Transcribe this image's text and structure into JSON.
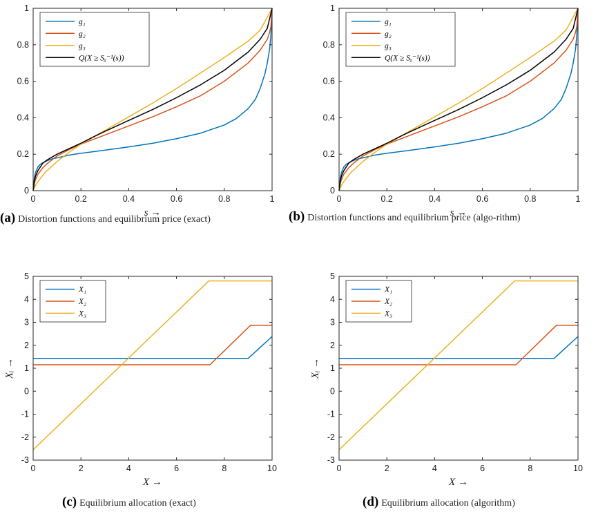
{
  "colors": {
    "g1": "#0072BD",
    "g2": "#D95319",
    "g3": "#EDB120",
    "Q": "#000000",
    "axes": "#262626"
  },
  "captions": {
    "a": {
      "tag": "(a)",
      "text": "Distortion functions and equilibrium price (exact)"
    },
    "b": {
      "tag": "(b)",
      "text": "Distortion functions and equilibrium price (algo-rithm)"
    },
    "c": {
      "tag": "(c)",
      "text": "Equilibrium allocation (exact)"
    },
    "d": {
      "tag": "(d)",
      "text": "Equilibrium allocation (algorithm)"
    }
  },
  "chart_data": [
    {
      "id": "a",
      "type": "line",
      "xlabel": "s →",
      "ylabel": "",
      "xlim": [
        0,
        1
      ],
      "ylim": [
        0,
        1
      ],
      "xticks": [
        "0",
        "0.2",
        "0.4",
        "0.6",
        "0.8",
        "1"
      ],
      "yticks": [
        "0",
        "0.2",
        "0.4",
        "0.6",
        "0.8",
        "1"
      ],
      "grid": false,
      "legend": "top-left",
      "series": [
        {
          "name": "g1",
          "legend_label": "g₁",
          "color_key": "g1",
          "x": [
            0,
            0.005,
            0.01,
            0.02,
            0.03,
            0.05,
            0.08,
            0.1,
            0.15,
            0.2,
            0.3,
            0.4,
            0.5,
            0.6,
            0.7,
            0.8,
            0.85,
            0.9,
            0.93,
            0.95,
            0.97,
            0.98,
            0.99,
            0.995,
            1
          ],
          "y": [
            0,
            0.07,
            0.1,
            0.13,
            0.145,
            0.16,
            0.175,
            0.18,
            0.195,
            0.205,
            0.222,
            0.24,
            0.26,
            0.285,
            0.315,
            0.36,
            0.395,
            0.45,
            0.5,
            0.56,
            0.64,
            0.7,
            0.78,
            0.85,
            1
          ]
        },
        {
          "name": "g2",
          "legend_label": "g₂",
          "color_key": "g2",
          "x": [
            0,
            0.005,
            0.01,
            0.02,
            0.04,
            0.06,
            0.1,
            0.15,
            0.2,
            0.25,
            0.3,
            0.4,
            0.5,
            0.6,
            0.7,
            0.8,
            0.9,
            0.95,
            0.98,
            0.99,
            0.995,
            1
          ],
          "y": [
            0,
            0.04,
            0.06,
            0.09,
            0.125,
            0.15,
            0.19,
            0.225,
            0.255,
            0.28,
            0.305,
            0.355,
            0.405,
            0.46,
            0.52,
            0.6,
            0.7,
            0.77,
            0.83,
            0.87,
            0.9,
            1
          ]
        },
        {
          "name": "g3",
          "legend_label": "g₃",
          "color_key": "g3",
          "x": [
            0,
            0.01,
            0.02,
            0.05,
            0.1,
            0.15,
            0.2,
            0.26,
            0.3,
            0.4,
            0.5,
            0.6,
            0.7,
            0.8,
            0.9,
            0.95,
            1
          ],
          "y": [
            0,
            0.03,
            0.05,
            0.1,
            0.16,
            0.21,
            0.255,
            0.3,
            0.33,
            0.405,
            0.48,
            0.56,
            0.645,
            0.73,
            0.82,
            0.88,
            1
          ]
        },
        {
          "name": "Q(X ≥ S_X^{-1}(s))",
          "legend_label": "Q(X ≥ Sᵪ⁻¹(s))",
          "color_key": "Q",
          "x": [
            0,
            0.005,
            0.01,
            0.02,
            0.04,
            0.06,
            0.1,
            0.15,
            0.2,
            0.26,
            0.3,
            0.4,
            0.5,
            0.6,
            0.7,
            0.8,
            0.9,
            0.95,
            0.98,
            1
          ],
          "y": [
            0,
            0.05,
            0.08,
            0.11,
            0.15,
            0.17,
            0.2,
            0.23,
            0.26,
            0.3,
            0.325,
            0.385,
            0.445,
            0.51,
            0.58,
            0.66,
            0.76,
            0.83,
            0.89,
            1
          ]
        }
      ]
    },
    {
      "id": "b",
      "type": "line",
      "xlabel": "s →",
      "ylabel": "",
      "xlim": [
        0,
        1
      ],
      "ylim": [
        0,
        1
      ],
      "xticks": [
        "0",
        "0.2",
        "0.4",
        "0.6",
        "0.8",
        "1"
      ],
      "yticks": [
        "0",
        "0.2",
        "0.4",
        "0.6",
        "0.8",
        "1"
      ],
      "grid": false,
      "legend": "top-left",
      "series": [
        {
          "name": "g1",
          "legend_label": "g₁",
          "color_key": "g1",
          "x": [
            0,
            0.005,
            0.01,
            0.02,
            0.03,
            0.05,
            0.08,
            0.1,
            0.15,
            0.2,
            0.3,
            0.4,
            0.5,
            0.6,
            0.7,
            0.8,
            0.85,
            0.9,
            0.93,
            0.95,
            0.97,
            0.98,
            0.99,
            0.995,
            1
          ],
          "y": [
            0,
            0.07,
            0.1,
            0.13,
            0.145,
            0.16,
            0.175,
            0.18,
            0.195,
            0.205,
            0.222,
            0.24,
            0.26,
            0.285,
            0.315,
            0.36,
            0.395,
            0.45,
            0.5,
            0.56,
            0.64,
            0.7,
            0.78,
            0.85,
            1
          ]
        },
        {
          "name": "g2",
          "legend_label": "g₂",
          "color_key": "g2",
          "x": [
            0,
            0.005,
            0.01,
            0.02,
            0.04,
            0.06,
            0.1,
            0.15,
            0.2,
            0.25,
            0.3,
            0.4,
            0.5,
            0.6,
            0.7,
            0.8,
            0.9,
            0.95,
            0.98,
            0.99,
            0.995,
            1
          ],
          "y": [
            0,
            0.04,
            0.06,
            0.09,
            0.125,
            0.15,
            0.19,
            0.225,
            0.255,
            0.28,
            0.305,
            0.355,
            0.405,
            0.46,
            0.52,
            0.6,
            0.7,
            0.77,
            0.83,
            0.87,
            0.9,
            1
          ]
        },
        {
          "name": "g3",
          "legend_label": "g₃",
          "color_key": "g3",
          "x": [
            0,
            0.01,
            0.02,
            0.05,
            0.1,
            0.15,
            0.2,
            0.26,
            0.3,
            0.4,
            0.5,
            0.6,
            0.7,
            0.8,
            0.9,
            0.95,
            1
          ],
          "y": [
            0,
            0.03,
            0.05,
            0.1,
            0.16,
            0.21,
            0.255,
            0.3,
            0.33,
            0.405,
            0.48,
            0.56,
            0.645,
            0.73,
            0.82,
            0.88,
            1
          ]
        },
        {
          "name": "Q(X ≥ S_X^{-1}(s))",
          "legend_label": "Q(X ≥ Sᵪ⁻¹(s))",
          "color_key": "Q",
          "x": [
            0,
            0.005,
            0.01,
            0.02,
            0.04,
            0.06,
            0.1,
            0.15,
            0.2,
            0.26,
            0.3,
            0.4,
            0.5,
            0.6,
            0.7,
            0.8,
            0.9,
            0.95,
            0.98,
            1
          ],
          "y": [
            0,
            0.05,
            0.08,
            0.11,
            0.15,
            0.17,
            0.2,
            0.23,
            0.26,
            0.3,
            0.325,
            0.385,
            0.445,
            0.51,
            0.58,
            0.66,
            0.76,
            0.83,
            0.89,
            1
          ]
        }
      ]
    },
    {
      "id": "c",
      "type": "line",
      "xlabel": "X →",
      "ylabel": "Xᵢ →",
      "xlim": [
        0,
        10
      ],
      "ylim": [
        -3,
        5
      ],
      "xticks": [
        "0",
        "2",
        "4",
        "6",
        "8",
        "10"
      ],
      "yticks": [
        "-3",
        "-2",
        "-1",
        "0",
        "1",
        "2",
        "3",
        "4",
        "5"
      ],
      "grid": false,
      "legend": "top-left",
      "series": [
        {
          "name": "X1",
          "legend_label": "X₁",
          "color_key": "g1",
          "x": [
            0,
            9.0,
            10
          ],
          "y": [
            1.43,
            1.43,
            2.38
          ]
        },
        {
          "name": "X2",
          "legend_label": "X₂",
          "color_key": "g2",
          "x": [
            0,
            7.4,
            9.1,
            10
          ],
          "y": [
            1.15,
            1.15,
            2.87,
            2.87
          ]
        },
        {
          "name": "X3",
          "legend_label": "X₃",
          "color_key": "g3",
          "x": [
            0,
            7.35,
            10
          ],
          "y": [
            -2.55,
            4.8,
            4.8
          ]
        }
      ]
    },
    {
      "id": "d",
      "type": "line",
      "xlabel": "X →",
      "ylabel": "Xᵢ →",
      "xlim": [
        0,
        10
      ],
      "ylim": [
        -3,
        5
      ],
      "xticks": [
        "0",
        "2",
        "4",
        "6",
        "8",
        "10"
      ],
      "yticks": [
        "-3",
        "-2",
        "-1",
        "0",
        "1",
        "2",
        "3",
        "4",
        "5"
      ],
      "grid": false,
      "legend": "top-left",
      "series": [
        {
          "name": "X1",
          "legend_label": "X₁",
          "color_key": "g1",
          "x": [
            0,
            9.0,
            10
          ],
          "y": [
            1.43,
            1.43,
            2.38
          ]
        },
        {
          "name": "X2",
          "legend_label": "X₂",
          "color_key": "g2",
          "x": [
            0,
            7.4,
            9.1,
            10
          ],
          "y": [
            1.15,
            1.15,
            2.87,
            2.87
          ]
        },
        {
          "name": "X3",
          "legend_label": "X₃",
          "color_key": "g3",
          "x": [
            0,
            7.35,
            10
          ],
          "y": [
            -2.55,
            4.8,
            4.8
          ]
        }
      ]
    }
  ]
}
